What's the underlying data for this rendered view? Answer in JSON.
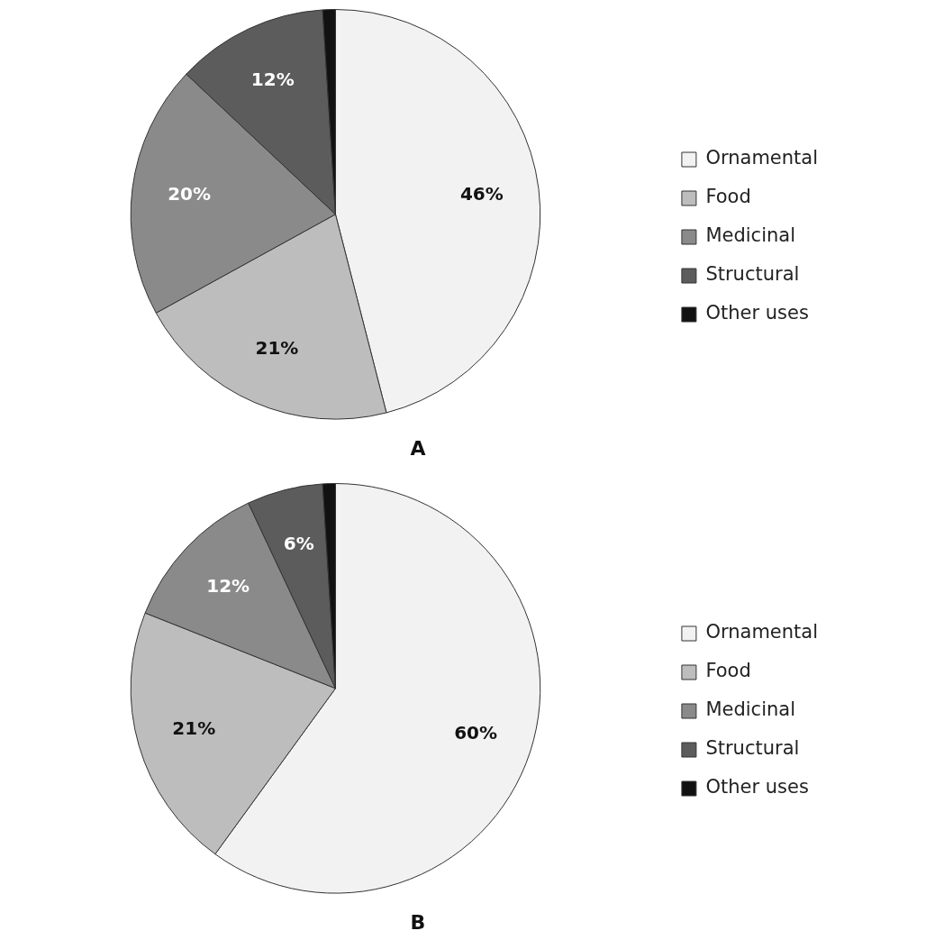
{
  "chart_data": [
    {
      "type": "pie",
      "title": "A",
      "categories": [
        "Ornamental",
        "Food",
        "Medicinal",
        "Structural",
        "Other uses"
      ],
      "values": [
        46,
        21,
        20,
        12,
        1
      ],
      "colors": [
        "#f2f2f2",
        "#bdbdbd",
        "#8a8a8a",
        "#5c5c5c",
        "#111111"
      ],
      "value_labels": [
        "46%",
        "21%",
        "20%",
        "12%",
        null
      ],
      "legend": "right"
    },
    {
      "type": "pie",
      "title": "B",
      "categories": [
        "Ornamental",
        "Food",
        "Medicinal",
        "Structural",
        "Other uses"
      ],
      "values": [
        60,
        21,
        12,
        6,
        1
      ],
      "colors": [
        "#f2f2f2",
        "#bdbdbd",
        "#8a8a8a",
        "#5c5c5c",
        "#111111"
      ],
      "value_labels": [
        "60%",
        "21%",
        "12%",
        "6%",
        null
      ],
      "legend": "right"
    }
  ]
}
